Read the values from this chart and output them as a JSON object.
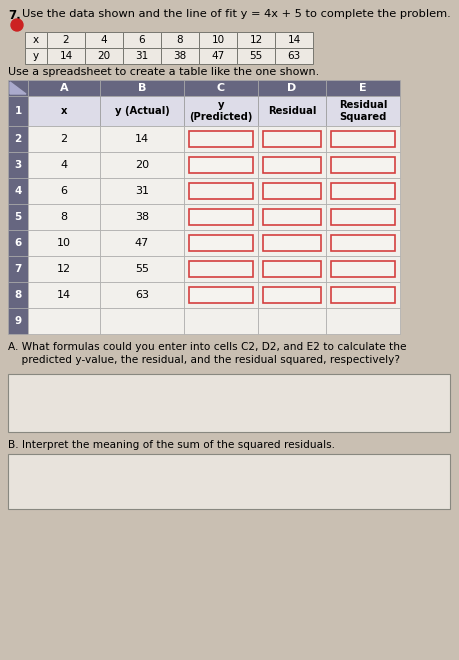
{
  "title_num": "7.",
  "title_text": "Use the data shown and the line of fit y = 4x + 5 to complete the problem.",
  "data_table": {
    "x_label": "x",
    "y_label": "y",
    "x_values": [
      2,
      4,
      6,
      8,
      10,
      12,
      14
    ],
    "y_values": [
      14,
      20,
      31,
      38,
      47,
      55,
      63
    ]
  },
  "spreadsheet_label": "Use a spreadsheet to create a table like the one shown.",
  "col_letters": [
    "A",
    "B",
    "C",
    "D",
    "E"
  ],
  "row_numbers": [
    "1",
    "2",
    "3",
    "4",
    "5",
    "6",
    "7",
    "8",
    "9"
  ],
  "header_row": [
    "x",
    "y (Actual)",
    "y\n(Predicted)",
    "Residual",
    "Residual\nSquared"
  ],
  "data_rows": [
    [
      2,
      14
    ],
    [
      4,
      20
    ],
    [
      6,
      31
    ],
    [
      8,
      38
    ],
    [
      10,
      47
    ],
    [
      12,
      55
    ],
    [
      14,
      63
    ]
  ],
  "question_A": "A. What formulas could you enter into cells C2, D2, and E2 to calculate the\n    predicted y-value, the residual, and the residual squared, respectively?",
  "question_B": "B. Interpret the meaning of the sum of the squared residuals.",
  "bg_color": "#c9bfb2",
  "dark_header_bg": "#666680",
  "light_cell_bg": "#f2f0ec",
  "header_cell_bg": "#dddce8",
  "empty_cell_outline": "#d44040",
  "answer_box_bg": "#e8e3dc",
  "answer_box_border": "#888880",
  "data_tbl_cell_bg": "#ede9e3",
  "data_tbl_border": "#777770"
}
